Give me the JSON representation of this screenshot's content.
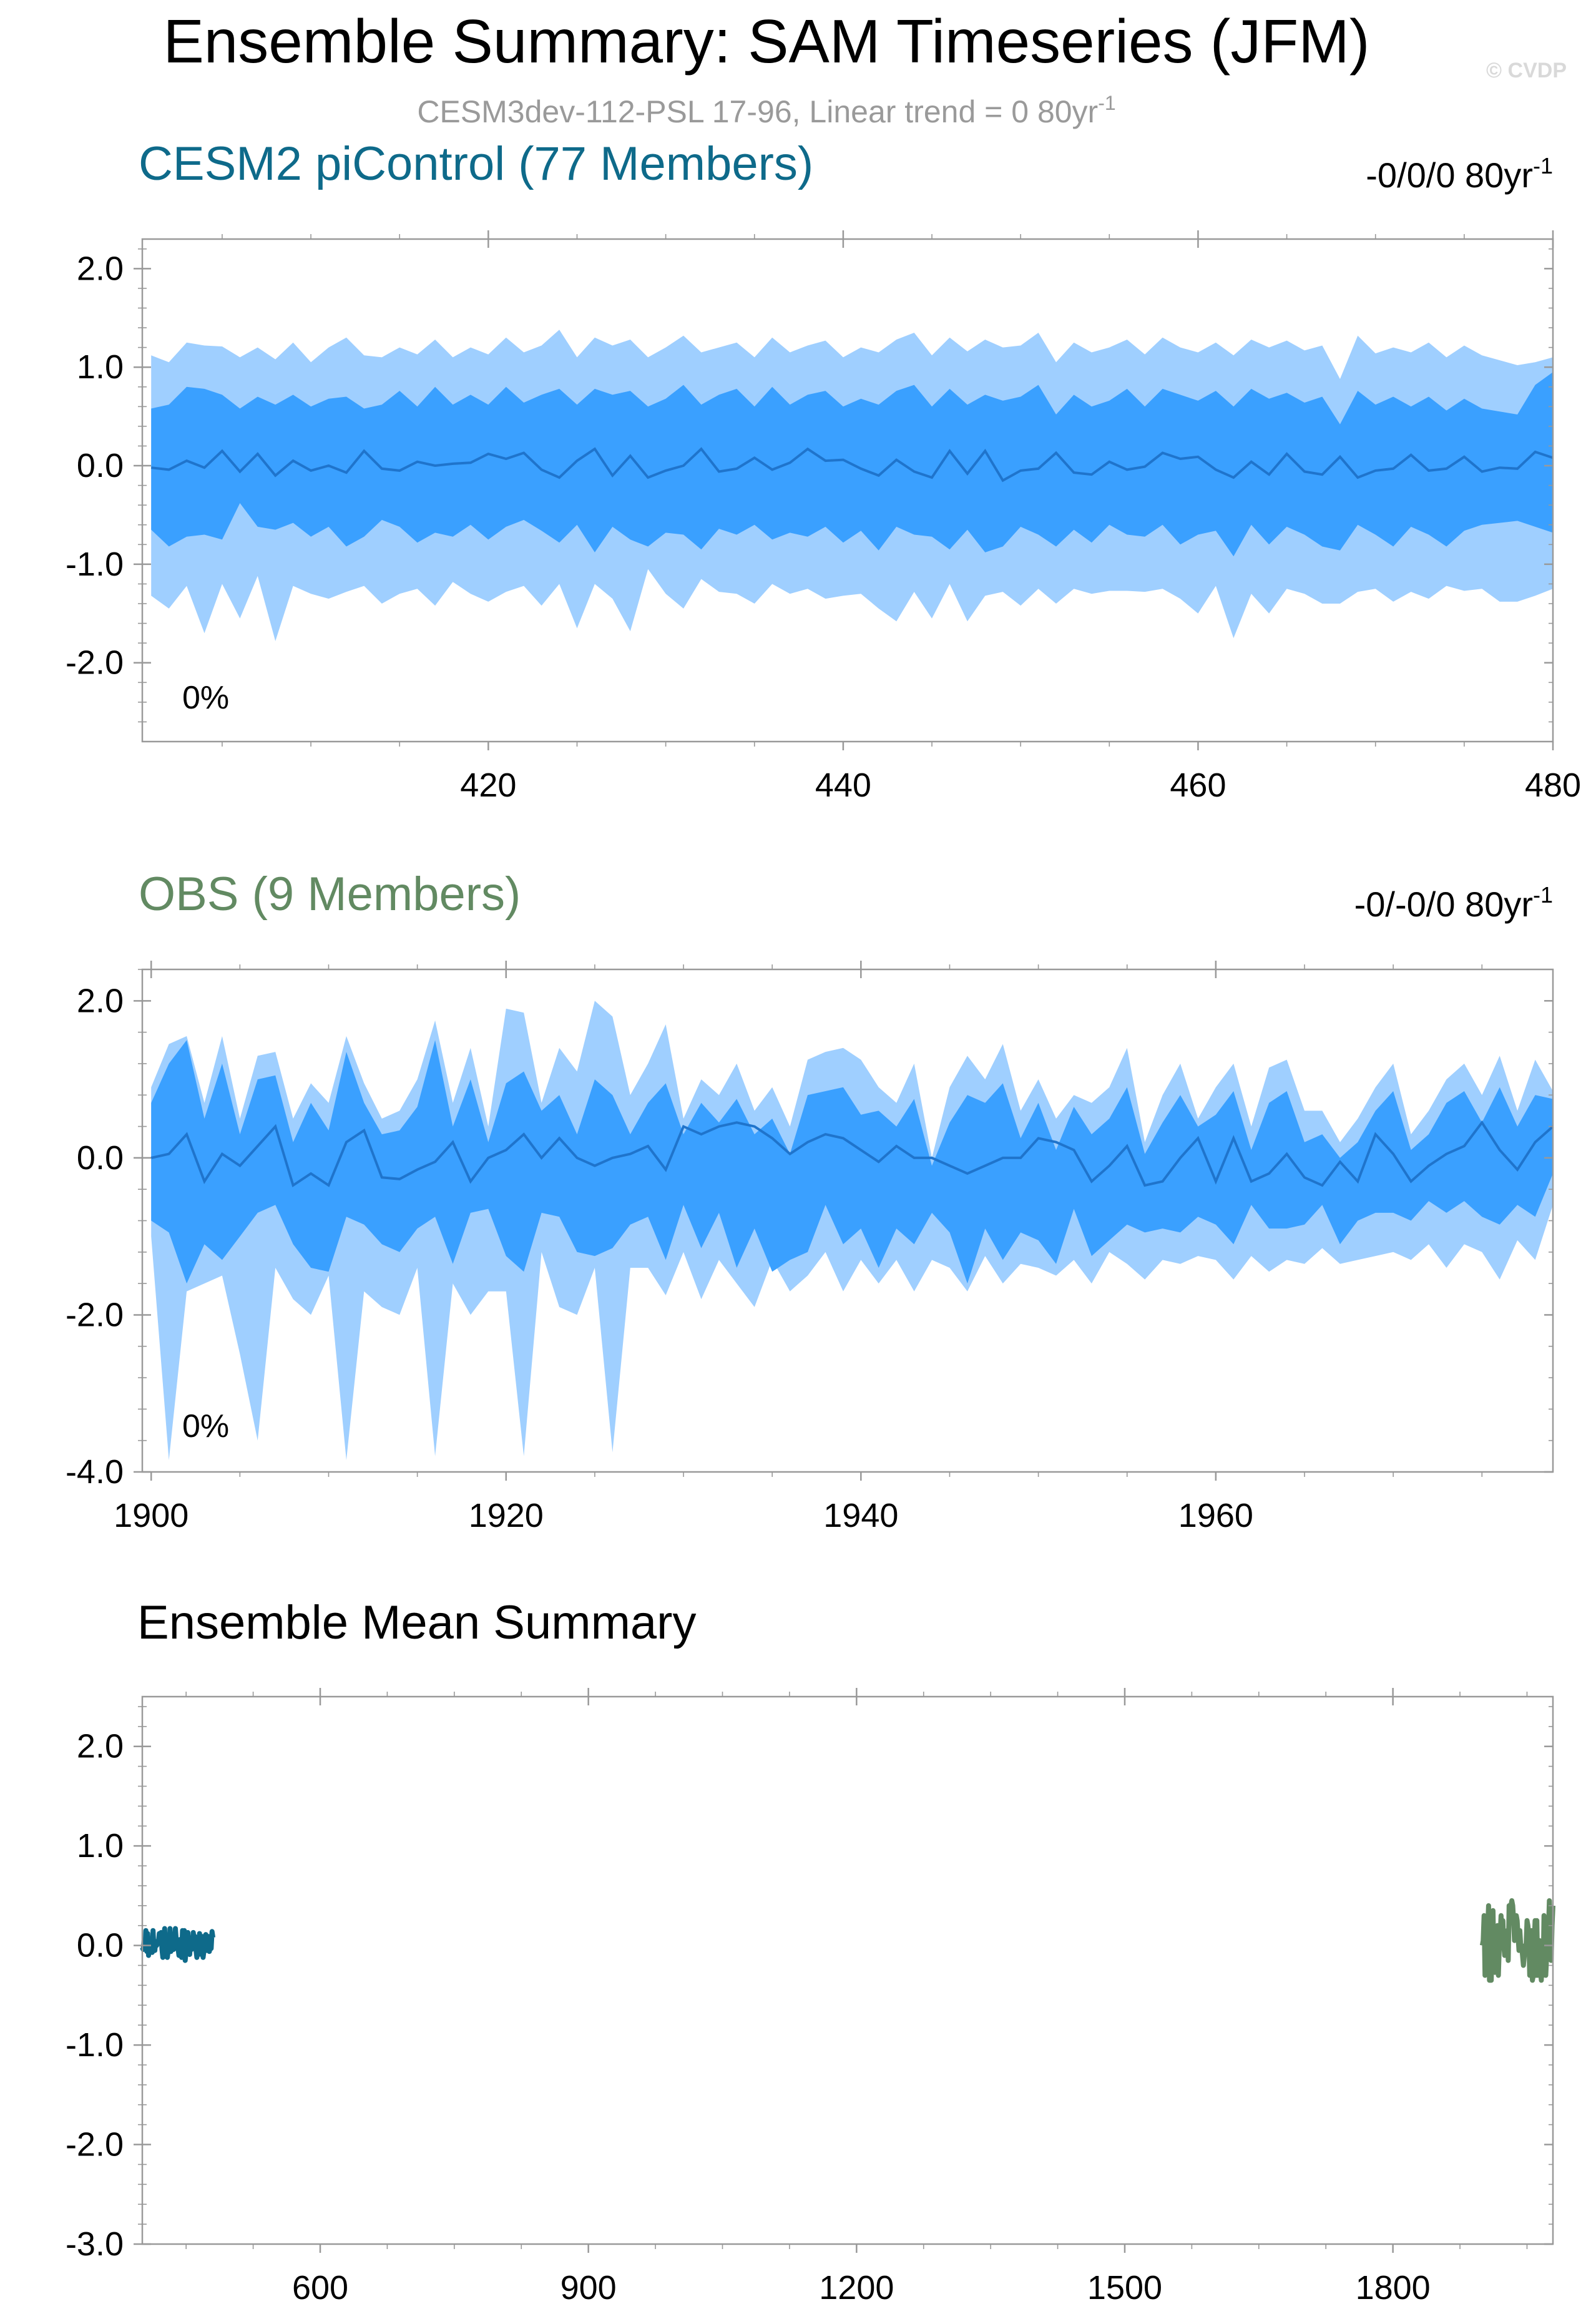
{
  "header": {
    "title": "Ensemble Summary: SAM Timeseries (JFM)",
    "subtitle": "CESM3dev-112-PSL 17-96, Linear trend = 0 80yr",
    "subtitle_sup": "-1",
    "watermark": "© CVDP"
  },
  "colors": {
    "band_outer": "#9fcfff",
    "band_inner": "#3aa0ff",
    "mean_line": "#1f74cc",
    "cesm_title": "#0e6a8a",
    "obs_title": "#628a62",
    "subtitle": "#9a9a9a",
    "watermark": "#d9d9d9",
    "frame": "#999999"
  },
  "chart_data": [
    {
      "type": "area",
      "title": "CESM2 piControl (77 Members)",
      "trend_text": "-0/0/0 80yr",
      "trend_sup": "-1",
      "percent_label": "0%",
      "xlim": [
        400.5,
        480
      ],
      "ylim": [
        -2.8,
        2.3
      ],
      "x_ticks": [
        420,
        440,
        460,
        480
      ],
      "x_tick_labels": [
        "420",
        "440",
        "460",
        "480"
      ],
      "y_ticks": [
        2.0,
        1.0,
        0.0,
        -1.0,
        -2.0
      ],
      "y_tick_labels": [
        "2.0",
        "1.0",
        "0.0",
        "-1.0",
        "-2.0"
      ],
      "x": [
        401,
        402,
        403,
        404,
        405,
        406,
        407,
        408,
        409,
        410,
        411,
        412,
        413,
        414,
        415,
        416,
        417,
        418,
        419,
        420,
        421,
        422,
        423,
        424,
        425,
        426,
        427,
        428,
        429,
        430,
        431,
        432,
        433,
        434,
        435,
        436,
        437,
        438,
        439,
        440,
        441,
        442,
        443,
        444,
        445,
        446,
        447,
        448,
        449,
        450,
        451,
        452,
        453,
        454,
        455,
        456,
        457,
        458,
        459,
        460,
        461,
        462,
        463,
        464,
        465,
        466,
        467,
        468,
        469,
        470,
        471,
        472,
        473,
        474,
        475,
        476,
        477,
        478,
        479,
        480
      ],
      "series": [
        {
          "values": [
            1.12,
            1.05,
            1.25,
            1.22,
            1.21,
            1.1,
            1.2,
            1.08,
            1.25,
            1.05,
            1.2,
            1.3,
            1.12,
            1.1,
            1.2,
            1.13,
            1.28,
            1.1,
            1.2,
            1.13,
            1.3,
            1.15,
            1.22,
            1.38,
            1.1,
            1.3,
            1.22,
            1.28,
            1.1,
            1.2,
            1.32,
            1.15,
            1.2,
            1.25,
            1.1,
            1.3,
            1.15,
            1.22,
            1.27,
            1.1,
            1.2,
            1.15,
            1.28,
            1.35,
            1.12,
            1.3,
            1.16,
            1.28,
            1.2,
            1.22,
            1.35,
            1.05,
            1.25,
            1.15,
            1.2,
            1.28,
            1.13,
            1.3,
            1.2,
            1.15,
            1.25,
            1.12,
            1.28,
            1.2,
            1.27,
            1.17,
            1.22,
            0.88,
            1.32,
            1.14,
            1.2,
            1.15,
            1.25,
            1.1,
            1.22,
            1.12,
            1.07,
            1.02,
            1.05,
            1.1
          ]
        },
        {
          "values": [
            0.58,
            0.62,
            0.8,
            0.78,
            0.72,
            0.58,
            0.7,
            0.62,
            0.72,
            0.6,
            0.68,
            0.7,
            0.58,
            0.62,
            0.76,
            0.6,
            0.8,
            0.62,
            0.72,
            0.62,
            0.8,
            0.64,
            0.72,
            0.78,
            0.62,
            0.78,
            0.72,
            0.76,
            0.6,
            0.68,
            0.82,
            0.62,
            0.72,
            0.78,
            0.6,
            0.8,
            0.62,
            0.72,
            0.76,
            0.6,
            0.68,
            0.62,
            0.76,
            0.82,
            0.6,
            0.78,
            0.62,
            0.72,
            0.66,
            0.7,
            0.82,
            0.52,
            0.72,
            0.6,
            0.66,
            0.78,
            0.6,
            0.78,
            0.72,
            0.66,
            0.76,
            0.6,
            0.78,
            0.68,
            0.74,
            0.64,
            0.7,
            0.42,
            0.76,
            0.62,
            0.7,
            0.6,
            0.7,
            0.56,
            0.68,
            0.58,
            0.55,
            0.52,
            0.82,
            0.95
          ]
        },
        {
          "values": [
            -0.02,
            -0.04,
            0.05,
            -0.02,
            0.15,
            -0.06,
            0.12,
            -0.1,
            0.05,
            -0.05,
            0.0,
            -0.07,
            0.15,
            -0.03,
            -0.05,
            0.04,
            0.0,
            0.02,
            0.03,
            0.12,
            0.07,
            0.13,
            -0.04,
            -0.12,
            0.05,
            0.17,
            -0.1,
            0.1,
            -0.12,
            -0.05,
            0.0,
            0.17,
            -0.06,
            -0.03,
            0.08,
            -0.04,
            0.03,
            0.17,
            0.05,
            0.06,
            -0.03,
            -0.1,
            0.06,
            -0.06,
            -0.12,
            0.15,
            -0.08,
            0.15,
            -0.15,
            -0.05,
            -0.03,
            0.13,
            -0.07,
            -0.09,
            0.04,
            -0.04,
            -0.01,
            0.13,
            0.07,
            0.09,
            -0.04,
            -0.12,
            0.04,
            -0.09,
            0.12,
            -0.06,
            -0.09,
            0.09,
            -0.12,
            -0.05,
            -0.03,
            0.11,
            -0.05,
            -0.03,
            0.09,
            -0.06,
            -0.02,
            -0.03,
            0.14,
            0.08
          ]
        },
        {
          "values": [
            -0.65,
            -0.82,
            -0.72,
            -0.7,
            -0.75,
            -0.38,
            -0.62,
            -0.65,
            -0.58,
            -0.72,
            -0.62,
            -0.82,
            -0.72,
            -0.55,
            -0.62,
            -0.78,
            -0.68,
            -0.72,
            -0.6,
            -0.75,
            -0.62,
            -0.55,
            -0.66,
            -0.78,
            -0.6,
            -0.88,
            -0.62,
            -0.75,
            -0.82,
            -0.68,
            -0.7,
            -0.85,
            -0.64,
            -0.7,
            -0.6,
            -0.75,
            -0.68,
            -0.72,
            -0.62,
            -0.78,
            -0.66,
            -0.86,
            -0.62,
            -0.7,
            -0.72,
            -0.85,
            -0.65,
            -0.88,
            -0.82,
            -0.62,
            -0.7,
            -0.82,
            -0.65,
            -0.78,
            -0.6,
            -0.7,
            -0.72,
            -0.6,
            -0.8,
            -0.7,
            -0.66,
            -0.92,
            -0.6,
            -0.8,
            -0.62,
            -0.7,
            -0.82,
            -0.86,
            -0.6,
            -0.7,
            -0.82,
            -0.62,
            -0.7,
            -0.82,
            -0.66,
            -0.6,
            -0.58,
            -0.56,
            -0.62,
            -0.68
          ]
        },
        {
          "values": [
            -1.32,
            -1.45,
            -1.22,
            -1.7,
            -1.2,
            -1.55,
            -1.12,
            -1.78,
            -1.22,
            -1.3,
            -1.35,
            -1.28,
            -1.22,
            -1.4,
            -1.3,
            -1.25,
            -1.42,
            -1.18,
            -1.3,
            -1.38,
            -1.28,
            -1.22,
            -1.42,
            -1.2,
            -1.65,
            -1.2,
            -1.35,
            -1.68,
            -1.05,
            -1.3,
            -1.45,
            -1.15,
            -1.28,
            -1.3,
            -1.4,
            -1.2,
            -1.3,
            -1.25,
            -1.35,
            -1.32,
            -1.3,
            -1.45,
            -1.58,
            -1.28,
            -1.55,
            -1.2,
            -1.58,
            -1.32,
            -1.28,
            -1.42,
            -1.25,
            -1.4,
            -1.25,
            -1.3,
            -1.27,
            -1.27,
            -1.28,
            -1.25,
            -1.35,
            -1.5,
            -1.22,
            -1.75,
            -1.3,
            -1.5,
            -1.25,
            -1.3,
            -1.4,
            -1.4,
            -1.28,
            -1.25,
            -1.38,
            -1.28,
            -1.35,
            -1.22,
            -1.27,
            -1.25,
            -1.38,
            -1.38,
            -1.32,
            -1.25
          ]
        }
      ]
    },
    {
      "type": "area",
      "title": "OBS (9 Members)",
      "trend_text": "-0/-0/0 80yr",
      "trend_sup": "-1",
      "percent_label": "0%",
      "xlim": [
        1899.5,
        1979
      ],
      "ylim": [
        -4.0,
        2.4
      ],
      "x_ticks": [
        1900,
        1920,
        1940,
        1960
      ],
      "x_tick_labels": [
        "1900",
        "1920",
        "1940",
        "1960"
      ],
      "y_ticks": [
        2.0,
        0.0,
        -2.0,
        -4.0
      ],
      "y_tick_labels": [
        "2.0",
        "0.0",
        "-2.0",
        "-4.0"
      ],
      "x": [
        1900,
        1901,
        1902,
        1903,
        1904,
        1905,
        1906,
        1907,
        1908,
        1909,
        1910,
        1911,
        1912,
        1913,
        1914,
        1915,
        1916,
        1917,
        1918,
        1919,
        1920,
        1921,
        1922,
        1923,
        1924,
        1925,
        1926,
        1927,
        1928,
        1929,
        1930,
        1931,
        1932,
        1933,
        1934,
        1935,
        1936,
        1937,
        1938,
        1939,
        1940,
        1941,
        1942,
        1943,
        1944,
        1945,
        1946,
        1947,
        1948,
        1949,
        1950,
        1951,
        1952,
        1953,
        1954,
        1955,
        1956,
        1957,
        1958,
        1959,
        1960,
        1961,
        1962,
        1963,
        1964,
        1965,
        1966,
        1967,
        1968,
        1969,
        1970,
        1971,
        1972,
        1973,
        1974,
        1975,
        1976,
        1977,
        1978,
        1979
      ],
      "series": [
        {
          "values": [
            0.9,
            1.45,
            1.55,
            0.7,
            1.55,
            0.5,
            1.3,
            1.35,
            0.5,
            0.95,
            0.7,
            1.55,
            0.95,
            0.5,
            0.6,
            1.0,
            1.75,
            0.7,
            1.4,
            0.4,
            1.9,
            1.85,
            0.7,
            1.4,
            1.1,
            2.0,
            1.8,
            0.8,
            1.2,
            1.7,
            0.5,
            1.0,
            0.8,
            1.2,
            0.6,
            0.9,
            0.4,
            1.25,
            1.35,
            1.4,
            1.25,
            0.9,
            0.7,
            1.2,
            0.0,
            0.9,
            1.3,
            1.0,
            1.45,
            0.6,
            1.0,
            0.5,
            0.8,
            0.7,
            0.9,
            1.4,
            0.2,
            0.8,
            1.2,
            0.5,
            0.9,
            1.2,
            0.4,
            1.15,
            1.25,
            0.6,
            0.6,
            0.2,
            0.5,
            0.9,
            1.2,
            0.3,
            0.6,
            1.0,
            1.2,
            0.8,
            1.3,
            0.6,
            1.25,
            0.85
          ]
        },
        {
          "values": [
            0.7,
            1.2,
            1.5,
            0.5,
            1.2,
            0.3,
            1.0,
            1.05,
            0.2,
            0.7,
            0.35,
            1.35,
            0.7,
            0.3,
            0.35,
            0.65,
            1.5,
            0.4,
            1.0,
            0.2,
            0.95,
            1.1,
            0.6,
            0.8,
            0.3,
            1.0,
            0.8,
            0.3,
            0.7,
            0.95,
            0.3,
            0.7,
            0.45,
            0.75,
            0.3,
            0.5,
            0.05,
            0.8,
            0.85,
            0.9,
            0.55,
            0.6,
            0.4,
            0.75,
            -0.1,
            0.45,
            0.8,
            0.7,
            0.95,
            0.25,
            0.7,
            0.1,
            0.65,
            0.3,
            0.5,
            0.9,
            0.05,
            0.45,
            0.8,
            0.4,
            0.55,
            0.85,
            0.1,
            0.7,
            0.85,
            0.2,
            0.3,
            0.0,
            0.2,
            0.6,
            0.85,
            0.1,
            0.3,
            0.7,
            0.85,
            0.45,
            0.9,
            0.4,
            0.8,
            0.75
          ]
        },
        {
          "values": [
            0.0,
            0.05,
            0.3,
            -0.3,
            0.05,
            -0.1,
            0.15,
            0.4,
            -0.35,
            -0.2,
            -0.35,
            0.2,
            0.35,
            -0.25,
            -0.27,
            -0.15,
            -0.05,
            0.2,
            -0.3,
            0.0,
            0.1,
            0.3,
            0.0,
            0.25,
            0.0,
            -0.1,
            0.0,
            0.05,
            0.15,
            -0.15,
            0.4,
            0.3,
            0.4,
            0.45,
            0.4,
            0.25,
            0.05,
            0.2,
            0.3,
            0.25,
            0.1,
            -0.05,
            0.15,
            0.0,
            0.0,
            -0.1,
            -0.2,
            -0.1,
            0.0,
            0.0,
            0.25,
            0.2,
            0.1,
            -0.3,
            -0.1,
            0.15,
            -0.35,
            -0.3,
            0.0,
            0.25,
            -0.3,
            0.25,
            -0.3,
            -0.2,
            0.05,
            -0.25,
            -0.35,
            -0.05,
            -0.3,
            0.3,
            0.05,
            -0.3,
            -0.1,
            0.05,
            0.15,
            0.45,
            0.1,
            -0.15,
            0.2,
            0.4
          ]
        },
        {
          "values": [
            -0.8,
            -0.95,
            -1.6,
            -1.1,
            -1.3,
            -1.0,
            -0.7,
            -0.6,
            -1.1,
            -1.4,
            -1.45,
            -0.75,
            -0.85,
            -1.1,
            -1.2,
            -0.9,
            -0.75,
            -1.35,
            -0.7,
            -0.65,
            -1.25,
            -1.45,
            -0.7,
            -0.75,
            -1.2,
            -1.25,
            -1.15,
            -0.85,
            -0.75,
            -1.3,
            -0.6,
            -1.15,
            -0.7,
            -1.4,
            -0.9,
            -1.45,
            -1.3,
            -1.2,
            -0.6,
            -1.1,
            -0.9,
            -1.4,
            -0.9,
            -1.1,
            -0.7,
            -0.95,
            -1.6,
            -0.9,
            -1.3,
            -0.95,
            -1.05,
            -1.35,
            -0.65,
            -1.25,
            -1.05,
            -0.85,
            -0.95,
            -0.9,
            -0.95,
            -0.75,
            -0.85,
            -1.1,
            -0.6,
            -0.9,
            -0.9,
            -0.85,
            -0.6,
            -1.1,
            -0.8,
            -0.7,
            -0.7,
            -0.8,
            -0.55,
            -0.7,
            -0.55,
            -0.75,
            -0.85,
            -0.6,
            -0.75,
            -0.2
          ]
        },
        {
          "values": [
            -1.0,
            -3.85,
            -1.7,
            -1.6,
            -1.5,
            -2.5,
            -3.6,
            -1.4,
            -1.8,
            -2.0,
            -1.5,
            -3.85,
            -1.7,
            -1.9,
            -2.0,
            -1.4,
            -3.8,
            -1.6,
            -2.0,
            -1.7,
            -1.7,
            -3.8,
            -1.2,
            -1.9,
            -2.0,
            -1.4,
            -3.75,
            -1.4,
            -1.4,
            -1.75,
            -1.2,
            -1.8,
            -1.3,
            -1.6,
            -1.9,
            -1.3,
            -1.7,
            -1.5,
            -1.2,
            -1.7,
            -1.3,
            -1.6,
            -1.3,
            -1.7,
            -1.3,
            -1.4,
            -1.7,
            -1.25,
            -1.6,
            -1.35,
            -1.4,
            -1.5,
            -1.3,
            -1.6,
            -1.2,
            -1.35,
            -1.55,
            -1.3,
            -1.35,
            -1.25,
            -1.3,
            -1.55,
            -1.25,
            -1.45,
            -1.3,
            -1.35,
            -1.15,
            -1.35,
            -1.3,
            -1.25,
            -1.2,
            -1.3,
            -1.1,
            -1.4,
            -1.1,
            -1.2,
            -1.55,
            -1.05,
            -1.3,
            -0.6
          ]
        }
      ]
    },
    {
      "type": "line",
      "title": "Ensemble Mean Summary",
      "xlim": [
        401,
        1979
      ],
      "ylim": [
        -3.0,
        2.5
      ],
      "x_ticks": [
        600,
        900,
        1200,
        1500,
        1800
      ],
      "x_tick_labels": [
        "600",
        "900",
        "1200",
        "1500",
        "1800"
      ],
      "y_ticks": [
        2.0,
        1.0,
        0.0,
        -1.0,
        -2.0,
        -3.0
      ],
      "y_tick_labels": [
        "2.0",
        "1.0",
        "0.0",
        "-1.0",
        "-2.0",
        "-3.0"
      ],
      "series": [
        {
          "name": "CESM2 piControl",
          "x_start": 401,
          "x_step": 1,
          "source": 0,
          "color": "#0e6a8a"
        },
        {
          "name": "OBS",
          "x_start": 1900,
          "x_step": 1,
          "source": 1,
          "color": "#628a62"
        }
      ]
    }
  ]
}
